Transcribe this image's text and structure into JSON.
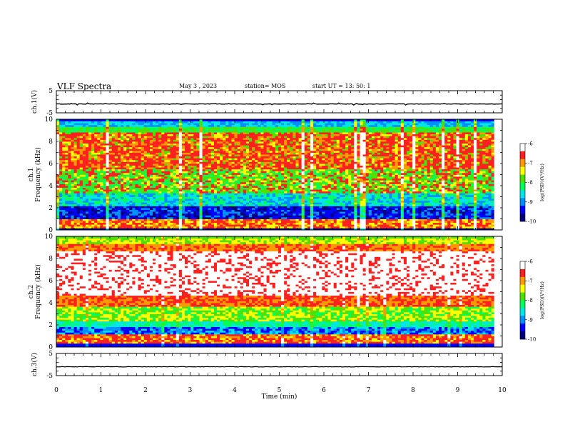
{
  "header": {
    "title": "VLF Spectra",
    "date": "May 3 , 2023",
    "station": "station= MOS",
    "start": "start UT = 13: 50: 1"
  },
  "colors": {
    "palette": [
      "#00007a",
      "#0000ff",
      "#0090ff",
      "#00e6e6",
      "#00ff5a",
      "#50e000",
      "#ffff00",
      "#ff9900",
      "#ff2020",
      "#ffffff"
    ]
  },
  "chart_data": [
    {
      "type": "line",
      "name": "ch1-waveform",
      "ylabel": "ch.1(V)",
      "ylim": [
        -5,
        5
      ],
      "yticks": [
        5,
        -5
      ],
      "trace_level": -1,
      "xlim": [
        0,
        10
      ]
    },
    {
      "type": "heatmap",
      "name": "ch1-spectrogram",
      "ylabel": "ch.1\nFrequency (kHz)",
      "ylim": [
        0,
        10
      ],
      "yticks": [
        0,
        2,
        4,
        6,
        8,
        10
      ],
      "xlim": [
        0,
        10
      ],
      "data_end_min": 9.82,
      "colorbar": {
        "label": "log(PSD)(V²/Hz)",
        "range": [
          -10,
          -6
        ],
        "ticks": [
          -6,
          -7,
          -8,
          -9,
          -10
        ]
      }
    },
    {
      "type": "heatmap",
      "name": "ch2-spectrogram",
      "ylabel": "ch.2\nFrequency (kHz)",
      "ylim": [
        0,
        10
      ],
      "yticks": [
        0,
        2,
        4,
        6,
        8,
        10
      ],
      "xlim": [
        0,
        10
      ],
      "data_end_min": 9.82,
      "colorbar": {
        "label": "log(PSD)(V²/Hz)",
        "range": [
          -10,
          -6
        ],
        "ticks": [
          -6,
          -7,
          -8,
          -9,
          -10
        ]
      }
    },
    {
      "type": "line",
      "name": "ch3-waveform",
      "ylabel": "ch.3(V)",
      "ylim": [
        -5,
        5
      ],
      "yticks": [
        5,
        -5
      ],
      "trace_level": -1,
      "xlim": [
        0,
        10
      ]
    }
  ],
  "xaxis": {
    "label": "Time  (min)",
    "ticks": [
      0,
      1,
      2,
      3,
      4,
      5,
      6,
      7,
      8,
      9,
      10
    ]
  }
}
